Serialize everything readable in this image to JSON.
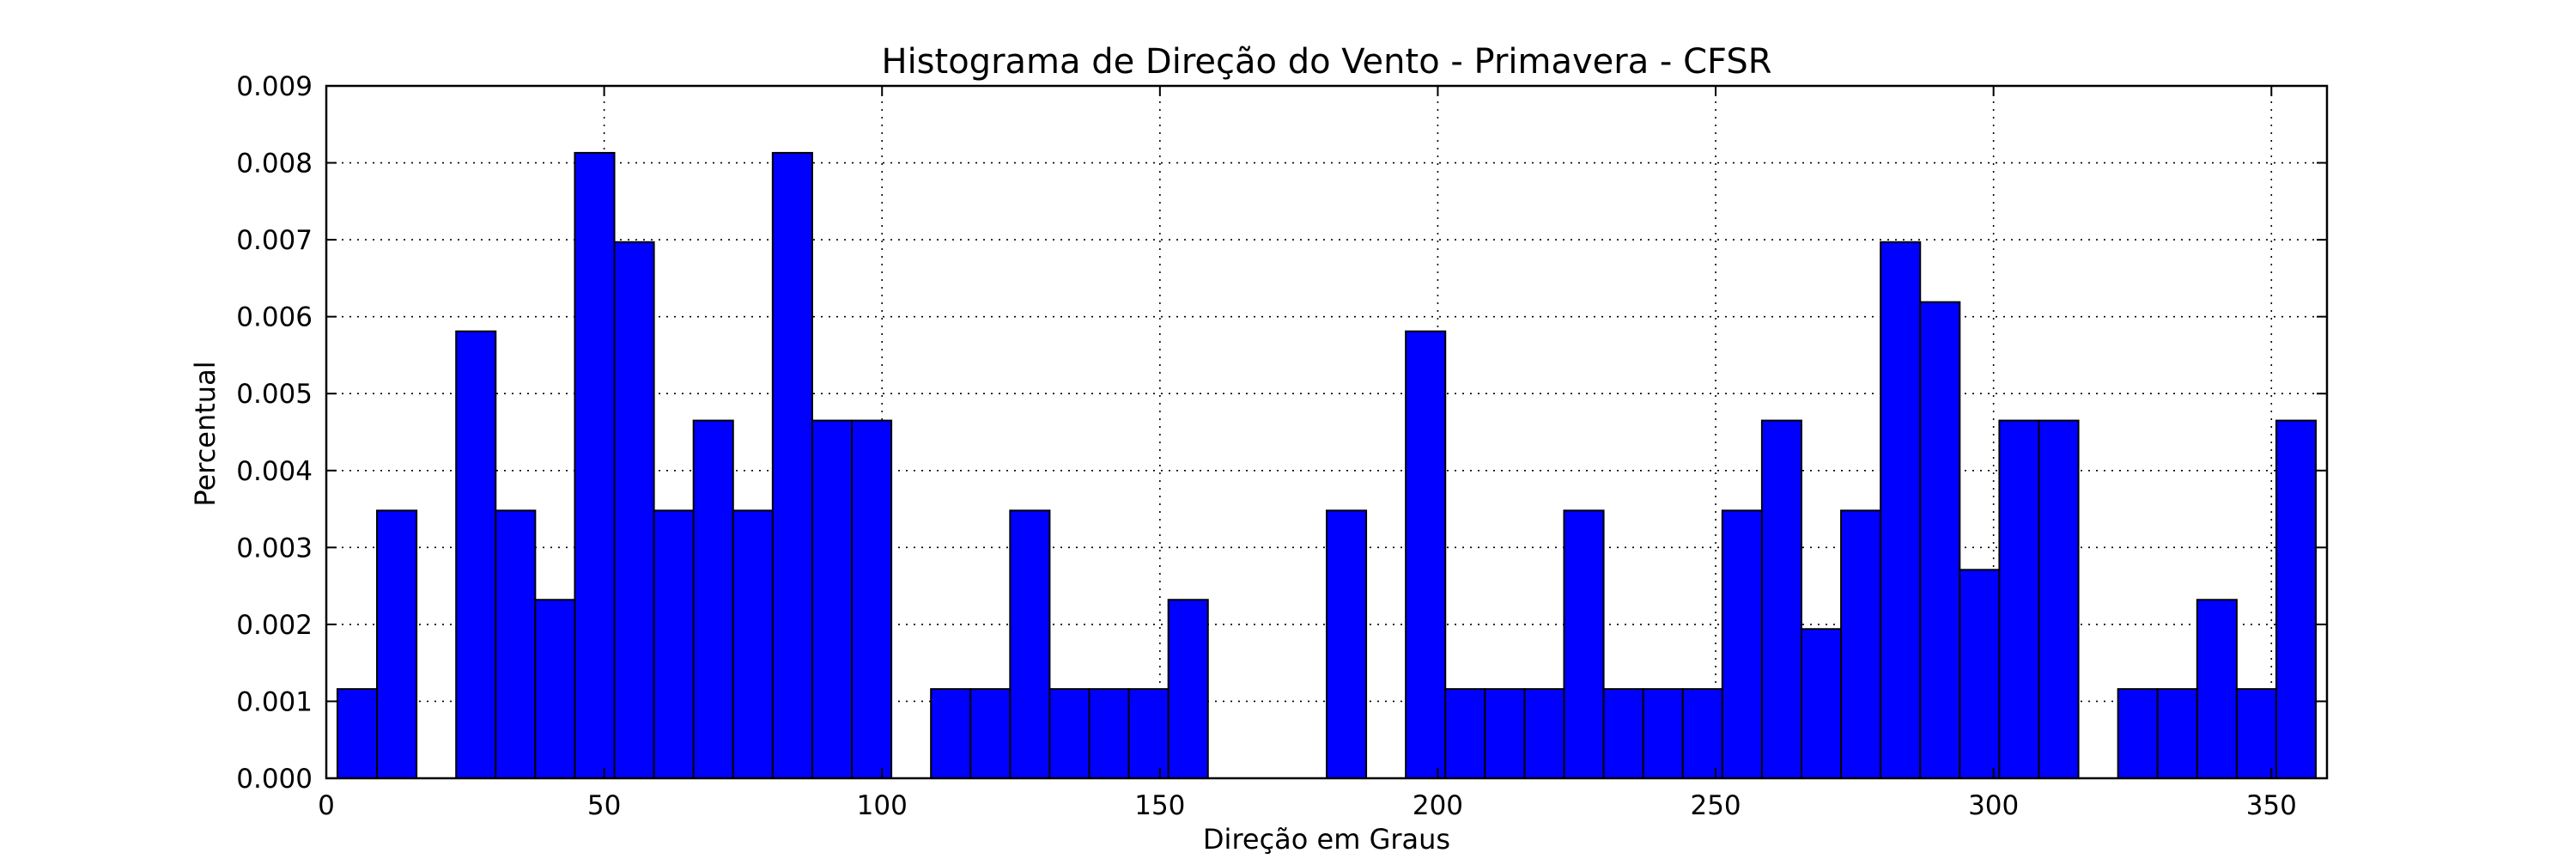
{
  "chart_data": {
    "type": "bar",
    "title": "Histograma de Direção do Vento - Primavera - CFSR",
    "xlabel": "Direção em Graus",
    "ylabel": "Percentual",
    "xlim": [
      0,
      360
    ],
    "ylim": [
      0,
      0.009
    ],
    "grid": true,
    "bar_color": "#0000ff",
    "x_ticks": [
      "0",
      "50",
      "100",
      "150",
      "200",
      "250",
      "300",
      "350"
    ],
    "y_ticks": [
      "0.000",
      "0.001",
      "0.002",
      "0.003",
      "0.004",
      "0.005",
      "0.006",
      "0.007",
      "0.008",
      "0.009"
    ],
    "bin_start": 2,
    "bin_width": 7.12,
    "values": [
      0.00116,
      0.00348,
      0,
      0.00581,
      0.00348,
      0.00232,
      0.00813,
      0.00697,
      0.00348,
      0.00465,
      0.00348,
      0.00813,
      0.00465,
      0.00465,
      0,
      0.00116,
      0.00116,
      0.00348,
      0.00116,
      0.00116,
      0.00116,
      0.00232,
      0,
      0,
      0,
      0.00348,
      0,
      0.00581,
      0.00116,
      0.00116,
      0.00116,
      0.00348,
      0.00116,
      0.00116,
      0.00116,
      0.00348,
      0.00465,
      0.00194,
      0.00348,
      0.00697,
      0.00619,
      0.00271,
      0.00465,
      0.00465,
      0,
      0.00116,
      0.00116,
      0.00232,
      0.00116,
      0.00465
    ]
  }
}
